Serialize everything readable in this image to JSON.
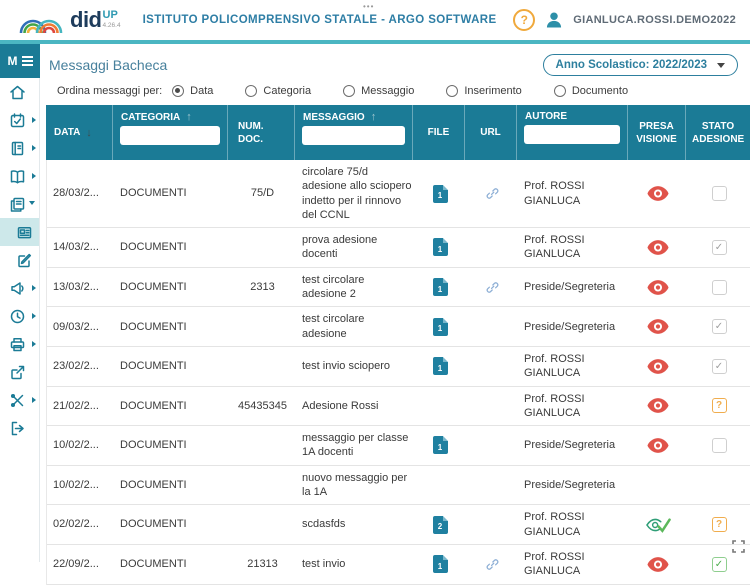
{
  "header": {
    "logo": {
      "did": "did",
      "up": "UP",
      "version": "4.26.4"
    },
    "school_title": "ISTITUTO POLICOMPRENSIVO STATALE - ARGO SOFTWARE",
    "help_label": "?",
    "username": "GIANLUCA.ROSSI.DEMO2022"
  },
  "sidebar": {
    "menu_label": "M",
    "items": [
      {
        "icon": "home"
      },
      {
        "icon": "calendar",
        "has_submenu": true
      },
      {
        "icon": "register",
        "has_submenu": true
      },
      {
        "icon": "book",
        "has_submenu": true
      },
      {
        "icon": "bacheca",
        "expanded": true
      },
      {
        "icon": "messages",
        "selected": true
      },
      {
        "icon": "compose"
      },
      {
        "icon": "megaphone",
        "has_submenu": true
      },
      {
        "icon": "clock",
        "has_submenu": true
      },
      {
        "icon": "printer",
        "has_submenu": true
      },
      {
        "icon": "share"
      },
      {
        "icon": "tools",
        "has_submenu": true
      },
      {
        "icon": "logout"
      }
    ]
  },
  "page": {
    "title": "Messaggi Bacheca",
    "year_selector": "Anno Scolastico: 2022/2023",
    "order_label": "Ordina messaggi per:",
    "order_options": [
      {
        "label": "Data",
        "selected": true
      },
      {
        "label": "Categoria",
        "selected": false
      },
      {
        "label": "Messaggio",
        "selected": false
      },
      {
        "label": "Inserimento",
        "selected": false
      },
      {
        "label": "Documento",
        "selected": false
      }
    ]
  },
  "table": {
    "columns": [
      "DATA",
      "CATEGORIA",
      "NUM. DOC.",
      "MESSAGGIO",
      "FILE",
      "URL",
      "AUTORE",
      "PRESA VISIONE",
      "STATO ADESIONE"
    ],
    "sort_arrows": {
      "data": "↓",
      "categoria": "↑",
      "messaggio": "↑"
    },
    "filters": {
      "categoria": "",
      "messaggio": "",
      "autore": ""
    },
    "rows": [
      {
        "date": "28/03/2...",
        "category": "DOCUMENTI",
        "num": "75/D",
        "message": "circolare 75/d adesione allo sciopero indetto per il rinnovo del CCNL",
        "file": "1",
        "url": true,
        "author": "Prof. ROSSI GIANLUCA",
        "presa": "red-eye",
        "stato": "unchecked"
      },
      {
        "date": "14/03/2...",
        "category": "DOCUMENTI",
        "num": "",
        "message": "prova adesione docenti",
        "file": "1",
        "url": false,
        "author": "Prof. ROSSI GIANLUCA",
        "presa": "red-eye",
        "stato": "checked-gray"
      },
      {
        "date": "13/03/2...",
        "category": "DOCUMENTI",
        "num": "2313",
        "message": "test circolare adesione 2",
        "file": "1",
        "url": true,
        "author": "Preside/Segreteria",
        "presa": "red-eye",
        "stato": "unchecked"
      },
      {
        "date": "09/03/2...",
        "category": "DOCUMENTI",
        "num": "",
        "message": "test circolare adesione",
        "file": "1",
        "url": false,
        "author": "Preside/Segreteria",
        "presa": "red-eye",
        "stato": "checked-gray"
      },
      {
        "date": "23/02/2...",
        "category": "DOCUMENTI",
        "num": "",
        "message": "test invio sciopero",
        "file": "1",
        "url": false,
        "author": "Prof. ROSSI GIANLUCA",
        "presa": "red-eye",
        "stato": "checked-gray"
      },
      {
        "date": "21/02/2...",
        "category": "DOCUMENTI",
        "num": "45435345",
        "message": "Adesione Rossi",
        "file": "",
        "url": false,
        "author": "Prof. ROSSI GIANLUCA",
        "presa": "red-eye",
        "stato": "question"
      },
      {
        "date": "10/02/2...",
        "category": "DOCUMENTI",
        "num": "",
        "message": "messaggio per classe 1A docenti",
        "file": "1",
        "url": false,
        "author": "Preside/Segreteria",
        "presa": "red-eye",
        "stato": "unchecked"
      },
      {
        "date": "10/02/2...",
        "category": "DOCUMENTI",
        "num": "",
        "message": "nuovo messaggio per la 1A",
        "file": "",
        "url": false,
        "author": "Preside/Segreteria",
        "presa": "none",
        "stato": "none"
      },
      {
        "date": "02/02/2...",
        "category": "DOCUMENTI",
        "num": "",
        "message": "scdasfds",
        "file": "2",
        "url": false,
        "author": "Prof. ROSSI GIANLUCA",
        "presa": "green-eye-check",
        "stato": "question"
      },
      {
        "date": "22/09/2...",
        "category": "DOCUMENTI",
        "num": "21313",
        "message": "test invio",
        "file": "1",
        "url": true,
        "author": "Prof. ROSSI GIANLUCA",
        "presa": "red-eye",
        "stato": "checked-green"
      }
    ]
  },
  "colors": {
    "teal_header": "#1b7b96",
    "teal_strip": "#4bb6c2",
    "accent_text": "#2d7f9e",
    "selected_item_bg": "#cde8ea",
    "red_eye": "#e0534a",
    "orange_badge": "#f0ad4e",
    "green_check": "#4cae4c",
    "file_badge": "#1f80a0",
    "link_icon": "#8fb0d6"
  }
}
